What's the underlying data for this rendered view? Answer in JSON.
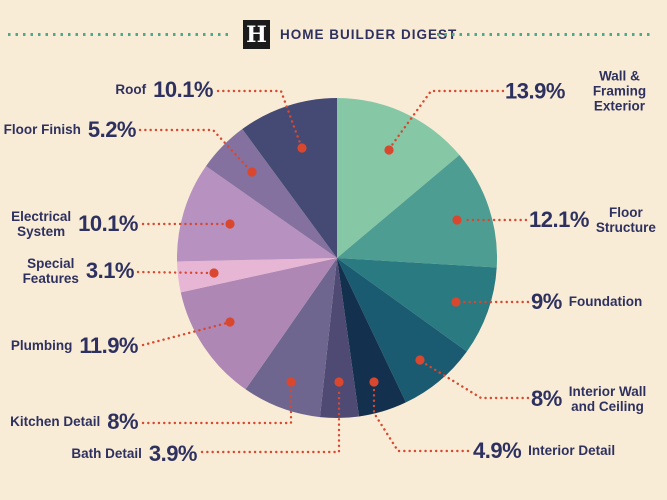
{
  "header": {
    "logo_letter": "H",
    "title": "HOME BUILDER DIGEST"
  },
  "colors": {
    "background": "#f9ecd6",
    "text": "#2e3160",
    "leader": "#d9472e",
    "header_dots": "#4aaa8c",
    "logo_bg": "#1b1b1b",
    "logo_letter": "#ffffff"
  },
  "chart_data": {
    "type": "pie",
    "title": "Home building cost breakdown",
    "legend_position": "callout-labels",
    "start_angle_deg": 0,
    "direction": "clockwise",
    "slices": [
      {
        "label": "Wall & Framing\nExterior",
        "name": "Wall & Framing Exterior",
        "value": 13.9,
        "value_display": "13.9%",
        "color": "#86c7a5"
      },
      {
        "label": "Floor\nStructure",
        "name": "Floor Structure",
        "value": 12.1,
        "value_display": "12.1%",
        "color": "#4e9d92"
      },
      {
        "label": "Foundation",
        "name": "Foundation",
        "value": 9,
        "value_display": "9%",
        "color": "#2a7a82"
      },
      {
        "label": "Interior Wall\nand Ceiling",
        "name": "Interior Wall and Ceiling",
        "value": 8,
        "value_display": "8%",
        "color": "#1a5b72"
      },
      {
        "label": "Interior Detail",
        "name": "Interior Detail",
        "value": 4.9,
        "value_display": "4.9%",
        "color": "#13314e"
      },
      {
        "label": "Bath Detail",
        "name": "Bath Detail",
        "value": 3.9,
        "value_display": "3.9%",
        "color": "#4f4a73"
      },
      {
        "label": "Kitchen Detail",
        "name": "Kitchen Detail",
        "value": 8,
        "value_display": "8%",
        "color": "#6f6690"
      },
      {
        "label": "Plumbing",
        "name": "Plumbing",
        "value": 11.9,
        "value_display": "11.9%",
        "color": "#ae87b5"
      },
      {
        "label": "Special\nFeatures",
        "name": "Special Features",
        "value": 3.1,
        "value_display": "3.1%",
        "color": "#e7b6d5"
      },
      {
        "label": "Electrical\nSystem",
        "name": "Electrical System",
        "value": 10.1,
        "value_display": "10.1%",
        "color": "#b791bf"
      },
      {
        "label": "Floor Finish",
        "name": "Floor Finish",
        "value": 5.2,
        "value_display": "5.2%",
        "color": "#84719f"
      },
      {
        "label": "Roof",
        "name": "Roof",
        "value": 10.1,
        "value_display": "10.1%",
        "color": "#454a74"
      }
    ]
  }
}
